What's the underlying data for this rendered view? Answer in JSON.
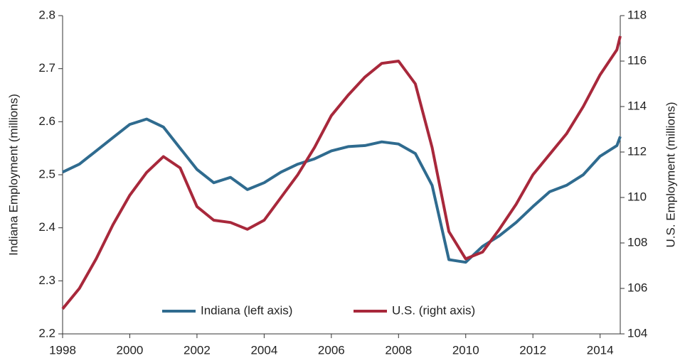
{
  "chart_data": {
    "type": "line",
    "ylabel": "Indiana Employment (millions)",
    "y2label": "U.S. Employment (millions)",
    "x": [
      1998,
      1998.5,
      1999,
      1999.5,
      2000,
      2000.5,
      2001,
      2001.5,
      2002,
      2002.5,
      2003,
      2003.5,
      2004,
      2004.5,
      2005,
      2005.5,
      2006,
      2006.5,
      2007,
      2007.5,
      2008,
      2008.5,
      2009,
      2009.5,
      2010,
      2010.5,
      2011,
      2011.5,
      2012,
      2012.5,
      2013,
      2013.5,
      2014,
      2014.5,
      2014.6
    ],
    "series": [
      {
        "name": "Indiana (left axis)",
        "color": "#2f6b8f",
        "axis": "y",
        "values": [
          2.505,
          2.52,
          2.545,
          2.57,
          2.595,
          2.605,
          2.59,
          2.55,
          2.51,
          2.485,
          2.495,
          2.472,
          2.485,
          2.505,
          2.52,
          2.53,
          2.545,
          2.553,
          2.555,
          2.562,
          2.558,
          2.54,
          2.48,
          2.34,
          2.335,
          2.365,
          2.385,
          2.41,
          2.44,
          2.468,
          2.48,
          2.5,
          2.535,
          2.555,
          2.572
        ]
      },
      {
        "name": "U.S. (right axis)",
        "color": "#a8283b",
        "axis": "y2",
        "values": [
          105.1,
          106.0,
          107.3,
          108.8,
          110.1,
          111.1,
          111.8,
          111.3,
          109.6,
          109.0,
          108.9,
          108.6,
          109.0,
          110.0,
          111.0,
          112.2,
          113.6,
          114.5,
          115.3,
          115.9,
          116.0,
          115.0,
          112.2,
          108.5,
          107.3,
          107.6,
          108.6,
          109.7,
          111.0,
          111.9,
          112.8,
          114.0,
          115.4,
          116.5,
          117.1
        ]
      }
    ],
    "xlim": [
      1998,
      2014.6
    ],
    "xticks": [
      1998,
      2000,
      2002,
      2004,
      2006,
      2008,
      2010,
      2012,
      2014
    ],
    "ylim": [
      2.2,
      2.8
    ],
    "yticks": [
      2.2,
      2.3,
      2.4,
      2.5,
      2.6,
      2.7,
      2.8
    ],
    "y2lim": [
      104,
      118
    ],
    "y2ticks": [
      104,
      106,
      108,
      110,
      112,
      114,
      116,
      118
    ],
    "grid": false,
    "legend": "bottom"
  }
}
